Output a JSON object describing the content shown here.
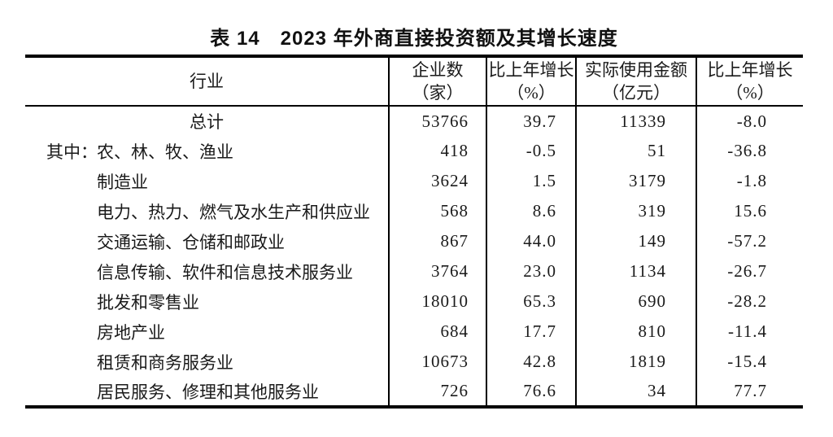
{
  "document": {
    "title": "表 14　2023 年外商直接投资额及其增长速度"
  },
  "table": {
    "columns": [
      {
        "line1": "行业",
        "line2": ""
      },
      {
        "line1": "企业数",
        "line2": "（家）"
      },
      {
        "line1": "比上年增长",
        "line2": "（%）"
      },
      {
        "line1": "实际使用金额",
        "line2": "（亿元）"
      },
      {
        "line1": "比上年增长",
        "line2": "（%）"
      }
    ],
    "rows": [
      {
        "prefix": "",
        "industry": "总计",
        "enterprises": "53766",
        "enterprises_growth": "39.7",
        "amount": "11339",
        "amount_growth": "-8.0"
      },
      {
        "prefix": "其中：",
        "industry": "农、林、牧、渔业",
        "enterprises": "418",
        "enterprises_growth": "-0.5",
        "amount": "51",
        "amount_growth": "-36.8"
      },
      {
        "prefix": "",
        "industry": "制造业",
        "enterprises": "3624",
        "enterprises_growth": "1.5",
        "amount": "3179",
        "amount_growth": "-1.8"
      },
      {
        "prefix": "",
        "industry": "电力、热力、燃气及水生产和供应业",
        "enterprises": "568",
        "enterprises_growth": "8.6",
        "amount": "319",
        "amount_growth": "15.6"
      },
      {
        "prefix": "",
        "industry": "交通运输、仓储和邮政业",
        "enterprises": "867",
        "enterprises_growth": "44.0",
        "amount": "149",
        "amount_growth": "-57.2"
      },
      {
        "prefix": "",
        "industry": "信息传输、软件和信息技术服务业",
        "enterprises": "3764",
        "enterprises_growth": "23.0",
        "amount": "1134",
        "amount_growth": "-26.7"
      },
      {
        "prefix": "",
        "industry": "批发和零售业",
        "enterprises": "18010",
        "enterprises_growth": "65.3",
        "amount": "690",
        "amount_growth": "-28.2"
      },
      {
        "prefix": "",
        "industry": "房地产业",
        "enterprises": "684",
        "enterprises_growth": "17.7",
        "amount": "810",
        "amount_growth": "-11.4"
      },
      {
        "prefix": "",
        "industry": "租赁和商务服务业",
        "enterprises": "10673",
        "enterprises_growth": "42.8",
        "amount": "1819",
        "amount_growth": "-15.4"
      },
      {
        "prefix": "",
        "industry": "居民服务、修理和其他服务业",
        "enterprises": "726",
        "enterprises_growth": "76.6",
        "amount": "34",
        "amount_growth": "77.7"
      }
    ]
  },
  "colors": {
    "text": "#1a1a1a",
    "rule": "#000000",
    "background": "#ffffff"
  }
}
